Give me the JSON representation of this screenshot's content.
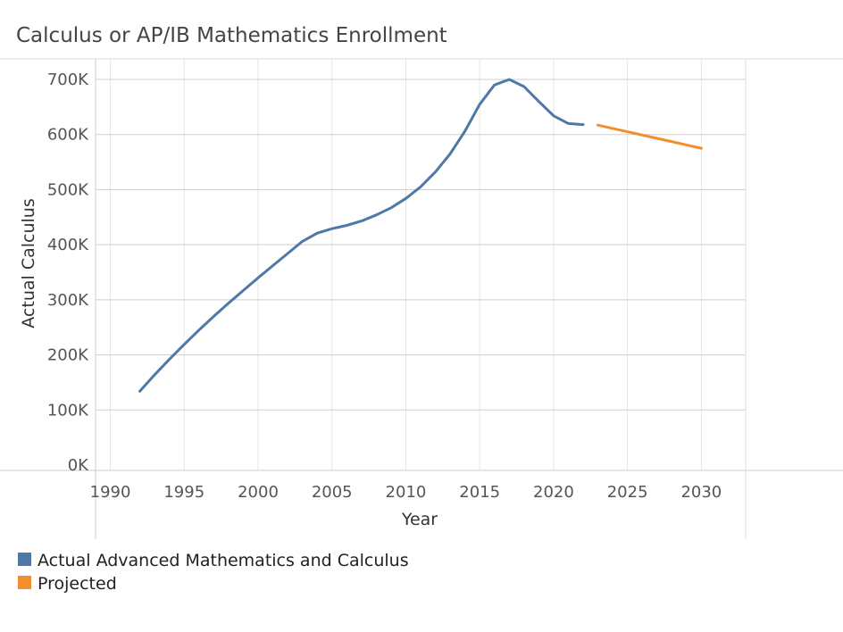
{
  "chart_data": {
    "type": "line",
    "title": "Calculus or AP/IB Mathematics Enrollment",
    "xlabel": "Year",
    "ylabel": "Actual Calculus",
    "xlim": [
      1989,
      2033
    ],
    "ylim": [
      0,
      700000
    ],
    "x_ticks": [
      1990,
      1995,
      2000,
      2005,
      2010,
      2015,
      2020,
      2025,
      2030
    ],
    "y_ticks": [
      {
        "value": 0,
        "label": "0K"
      },
      {
        "value": 100000,
        "label": "100K"
      },
      {
        "value": 200000,
        "label": "200K"
      },
      {
        "value": 300000,
        "label": "300K"
      },
      {
        "value": 400000,
        "label": "400K"
      },
      {
        "value": 500000,
        "label": "500K"
      },
      {
        "value": 600000,
        "label": "600K"
      },
      {
        "value": 700000,
        "label": "700K"
      }
    ],
    "grid": true,
    "legend_position": "bottom-left",
    "series": [
      {
        "name": "Actual Advanced Mathematics and Calculus",
        "color": "#4E79A7",
        "x": [
          1992,
          1993,
          1994,
          1995,
          1996,
          1997,
          1998,
          1999,
          2000,
          2001,
          2002,
          2003,
          2004,
          2005,
          2006,
          2007,
          2008,
          2009,
          2010,
          2011,
          2012,
          2013,
          2014,
          2015,
          2016,
          2017,
          2018,
          2019,
          2020,
          2021,
          2022
        ],
        "y": [
          134000,
          164000,
          192000,
          219000,
          245000,
          270000,
          294000,
          317000,
          340000,
          362000,
          384000,
          406000,
          421000,
          429000,
          435000,
          443000,
          454000,
          467000,
          484000,
          505000,
          532000,
          565000,
          606000,
          655000,
          690000,
          700000,
          687000,
          660000,
          634000,
          620000,
          618000
        ]
      },
      {
        "name": "Projected",
        "color": "#F28E2B",
        "x": [
          2023,
          2030
        ],
        "y": [
          617000,
          575000
        ]
      }
    ]
  }
}
